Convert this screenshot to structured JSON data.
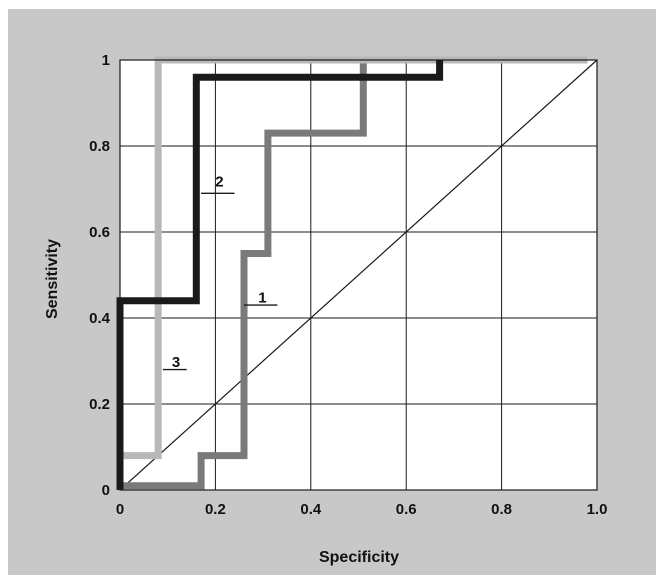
{
  "chart_data": {
    "type": "line",
    "title": "",
    "xlabel": "Specificity",
    "ylabel": "Sensitivity",
    "xlim": [
      0,
      1
    ],
    "ylim": [
      0,
      1
    ],
    "x_ticks": [
      0,
      0.2,
      0.4,
      0.6,
      0.8,
      1.0
    ],
    "x_tick_labels": [
      "0",
      "0.2",
      "0.4",
      "0.6",
      "0.8",
      "1.0"
    ],
    "y_ticks": [
      0,
      0.2,
      0.4,
      0.6,
      0.8,
      1
    ],
    "y_tick_labels": [
      "0",
      "0.2",
      "0.4",
      "0.6",
      "0.8",
      "1"
    ],
    "grid": true,
    "legend": "none",
    "reference_line": {
      "x": [
        0,
        1
      ],
      "y": [
        0,
        1
      ],
      "color": "#1a1a1a"
    },
    "series": [
      {
        "name": "1",
        "color": "#7a7a7a",
        "x": [
          0,
          0.17,
          0.17,
          0.26,
          0.26,
          0.31,
          0.31,
          0.51,
          0.51
        ],
        "y": [
          0.01,
          0.01,
          0.08,
          0.08,
          0.55,
          0.55,
          0.83,
          0.83,
          1.0
        ]
      },
      {
        "name": "2",
        "color": "#1a1a1a",
        "x": [
          0,
          0,
          0.16,
          0.16,
          0.67,
          0.67
        ],
        "y": [
          0,
          0.44,
          0.44,
          0.96,
          0.96,
          1.0
        ]
      },
      {
        "name": "3",
        "color": "#b8b8b8",
        "x": [
          0,
          0.08,
          0.08,
          0.98
        ],
        "y": [
          0.08,
          0.08,
          1.0,
          1.0
        ]
      }
    ],
    "annotations": [
      {
        "text": "2",
        "x": 0.17,
        "y": 0.69,
        "label_x": 0.24,
        "label_y": 0.72
      },
      {
        "text": "1",
        "x": 0.26,
        "y": 0.43,
        "label_x": 0.33,
        "label_y": 0.45
      },
      {
        "text": "3",
        "x": 0.09,
        "y": 0.28,
        "label_x": 0.14,
        "label_y": 0.3
      }
    ]
  }
}
